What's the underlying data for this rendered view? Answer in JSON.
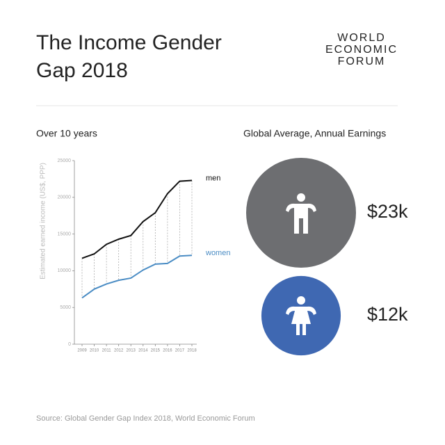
{
  "title_lines": [
    "The Income Gender",
    "Gap 2018"
  ],
  "logo_lines": [
    "WORLD",
    "ECONOMIC",
    "FORUM"
  ],
  "source": "Source:  Global Gender Gap Index 2018, World Economic Forum",
  "chart_data": [
    {
      "type": "line",
      "title": "Over 10 years",
      "y_label": "Estimated earned income (US$, PPP)",
      "categories": [
        "2009",
        "2010",
        "2011",
        "2012",
        "2013",
        "2014",
        "2015",
        "2016",
        "2017",
        "2018"
      ],
      "ylim": [
        0,
        25000
      ],
      "yticks": [
        0,
        5000,
        10000,
        15000,
        20000,
        25000
      ],
      "series": [
        {
          "name": "men",
          "color": "#111111",
          "values": [
            11700,
            12300,
            13600,
            14300,
            14800,
            16700,
            17900,
            20500,
            22200,
            22300
          ]
        },
        {
          "name": "women",
          "color": "#4a8cc4",
          "values": [
            6300,
            7500,
            8200,
            8700,
            9000,
            10100,
            10900,
            11000,
            12000,
            12100
          ]
        }
      ]
    },
    {
      "type": "bubble",
      "title": "Global Average, Annual Earnings",
      "values": [
        23000,
        12000
      ],
      "value_labels": [
        "$23k",
        "$12k"
      ],
      "colors": [
        "#6d6e71",
        "#3f68b2"
      ]
    }
  ]
}
